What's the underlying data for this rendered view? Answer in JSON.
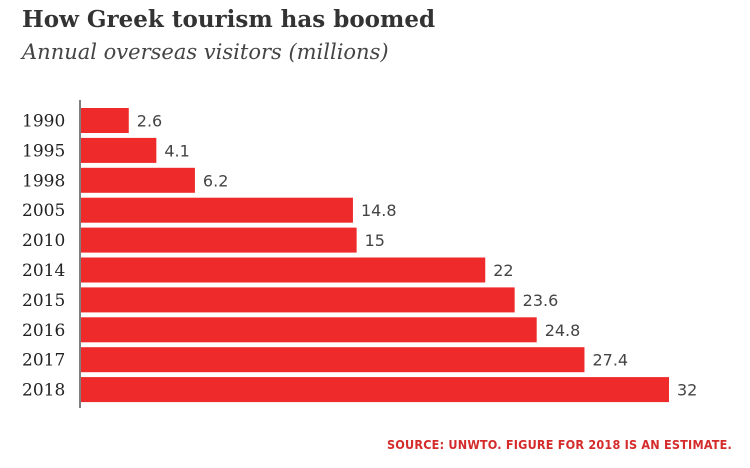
{
  "chart_data": {
    "type": "bar",
    "orientation": "horizontal",
    "title": "How Greek tourism has boomed",
    "subtitle": "Annual overseas visitors (millions)",
    "categories": [
      "1990",
      "1995",
      "1998",
      "2005",
      "2010",
      "2014",
      "2015",
      "2016",
      "2017",
      "2018"
    ],
    "values": [
      2.6,
      4.1,
      6.2,
      14.8,
      15,
      22,
      23.6,
      24.8,
      27.4,
      32
    ],
    "value_labels": [
      "2.6",
      "4.1",
      "6.2",
      "14.8",
      "15",
      "22",
      "23.6",
      "24.8",
      "27.4",
      "32"
    ],
    "xlim": [
      0,
      32
    ],
    "grid": false,
    "bar_color": "#ee2a2a",
    "source": "SOURCE: UNWTO. FIGURE FOR 2018 IS AN ESTIMATE."
  },
  "colors": {
    "source_text": "#d42b2b",
    "axis": "#555555"
  }
}
